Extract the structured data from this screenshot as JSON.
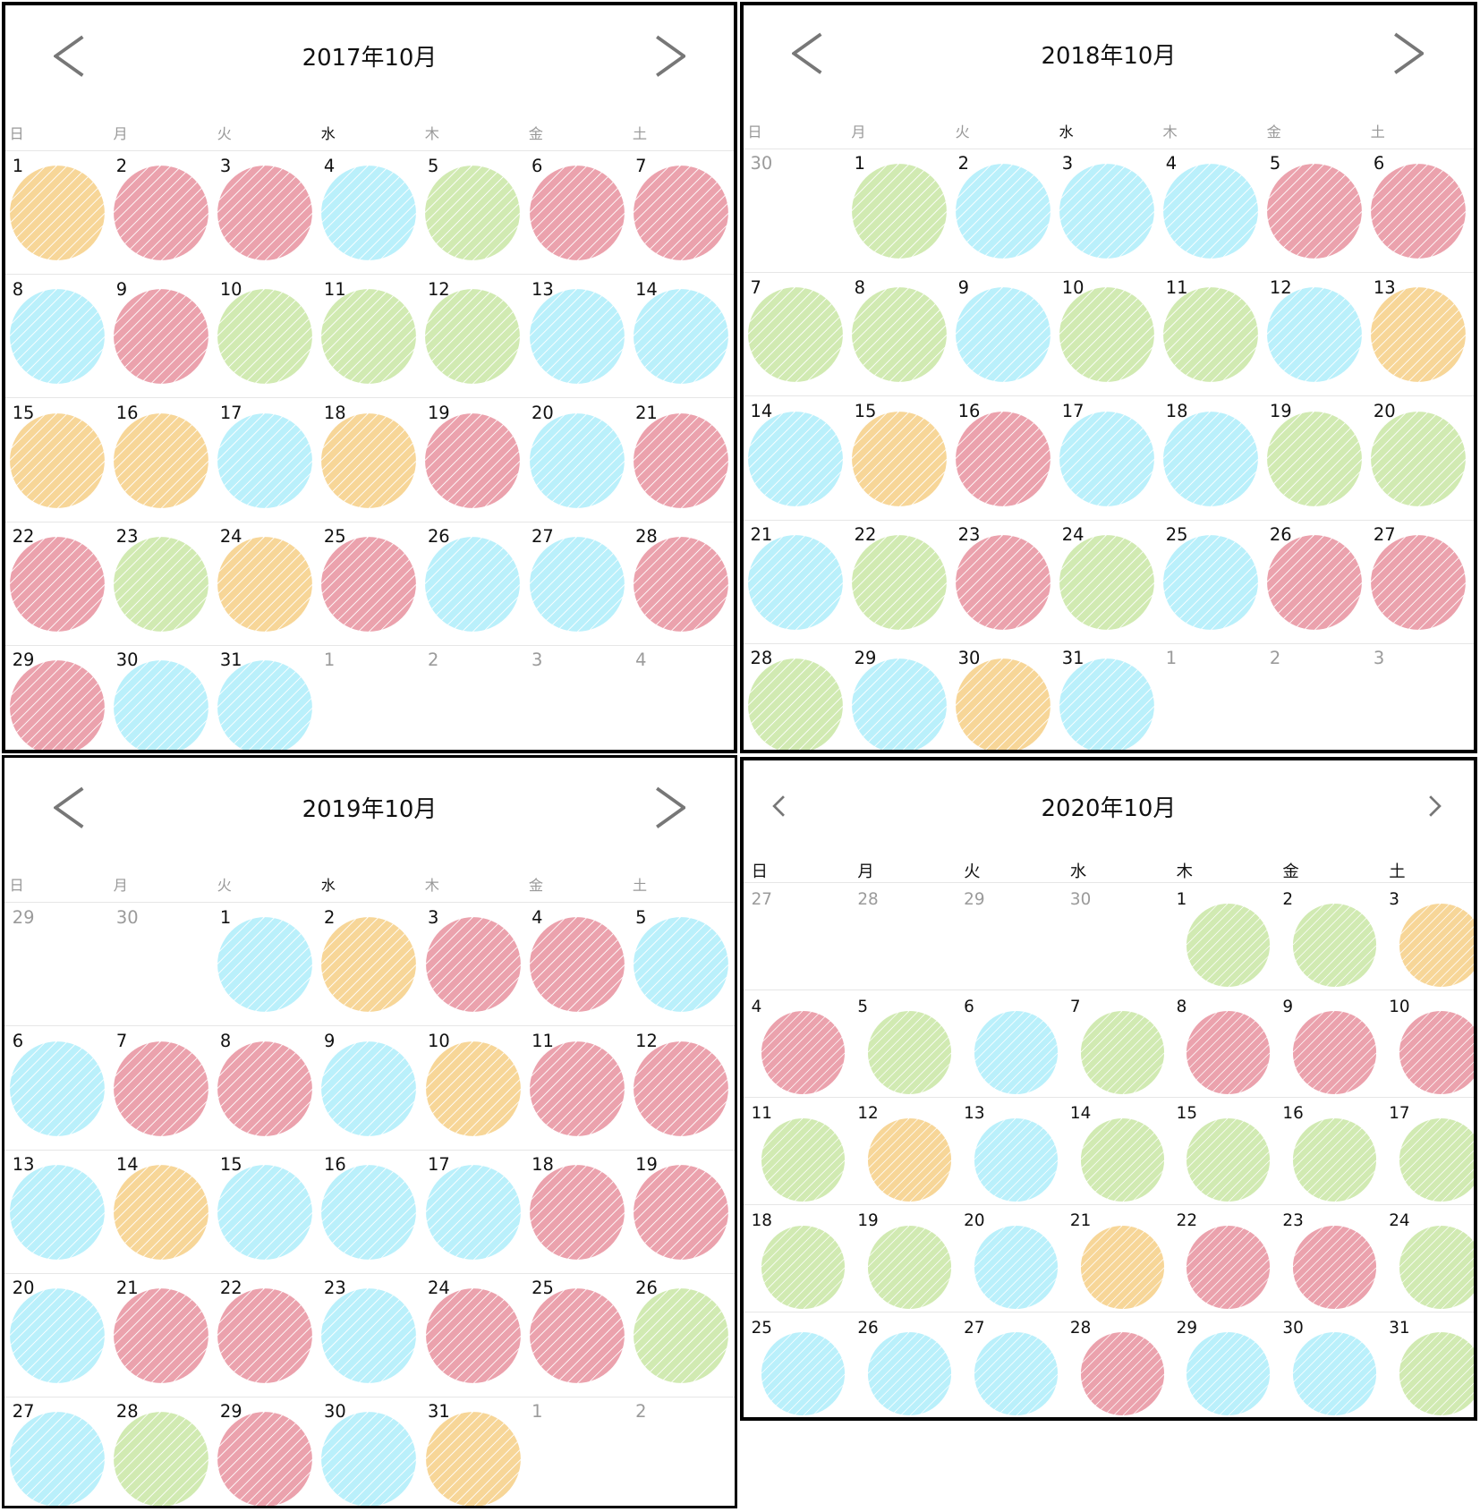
{
  "colors": {
    "pink": "#e8929f",
    "blue": "#aeeefb",
    "green": "#c9e7a5",
    "yellow": "#f6cf86",
    "border": "#000000",
    "divider": "#e6e6e6",
    "nav": "#777777",
    "other_month": "#9b9b9b"
  },
  "icons": {
    "prev": "chevron-left-icon",
    "next": "chevron-right-icon"
  },
  "weekdays": [
    "日",
    "月",
    "火",
    "水",
    "木",
    "金",
    "土"
  ],
  "calendars": [
    {
      "title": "2017年10月",
      "leading": [],
      "days": [
        "yellow",
        "pink",
        "pink",
        "blue",
        "green",
        "pink",
        "pink",
        "blue",
        "pink",
        "green",
        "green",
        "green",
        "blue",
        "blue",
        "yellow",
        "yellow",
        "blue",
        "yellow",
        "pink",
        "blue",
        "pink",
        "pink",
        "green",
        "yellow",
        "pink",
        "blue",
        "blue",
        "pink",
        "pink",
        "blue",
        "blue"
      ],
      "trailing": [
        "1",
        "2",
        "3",
        "4"
      ]
    },
    {
      "title": "2018年10月",
      "leading": [
        "30"
      ],
      "days": [
        "green",
        "blue",
        "blue",
        "blue",
        "pink",
        "pink",
        "green",
        "green",
        "blue",
        "green",
        "green",
        "blue",
        "yellow",
        "blue",
        "yellow",
        "pink",
        "blue",
        "blue",
        "green",
        "green",
        "blue",
        "green",
        "pink",
        "green",
        "blue",
        "pink",
        "pink",
        "green",
        "blue",
        "yellow",
        "blue"
      ],
      "trailing": [
        "1",
        "2",
        "3"
      ]
    },
    {
      "title": "2019年10月",
      "leading": [
        "29",
        "30"
      ],
      "days": [
        "blue",
        "yellow",
        "pink",
        "pink",
        "blue",
        "blue",
        "pink",
        "pink",
        "blue",
        "yellow",
        "pink",
        "pink",
        "blue",
        "yellow",
        "blue",
        "blue",
        "blue",
        "pink",
        "pink",
        "blue",
        "pink",
        "pink",
        "blue",
        "pink",
        "pink",
        "green",
        "blue",
        "green",
        "pink",
        "blue",
        "yellow"
      ],
      "trailing": [
        "1",
        "2"
      ]
    },
    {
      "title": "2020年10月",
      "leading": [
        "27",
        "28",
        "29",
        "30"
      ],
      "days": [
        "green",
        "green",
        "yellow",
        "pink",
        "green",
        "blue",
        "green",
        "pink",
        "pink",
        "pink",
        "green",
        "yellow",
        "blue",
        "green",
        "green",
        "green",
        "green",
        "green",
        "green",
        "blue",
        "yellow",
        "pink",
        "pink",
        "green",
        "blue",
        "blue",
        "blue",
        "pink",
        "blue",
        "blue",
        "green"
      ],
      "trailing": []
    }
  ]
}
